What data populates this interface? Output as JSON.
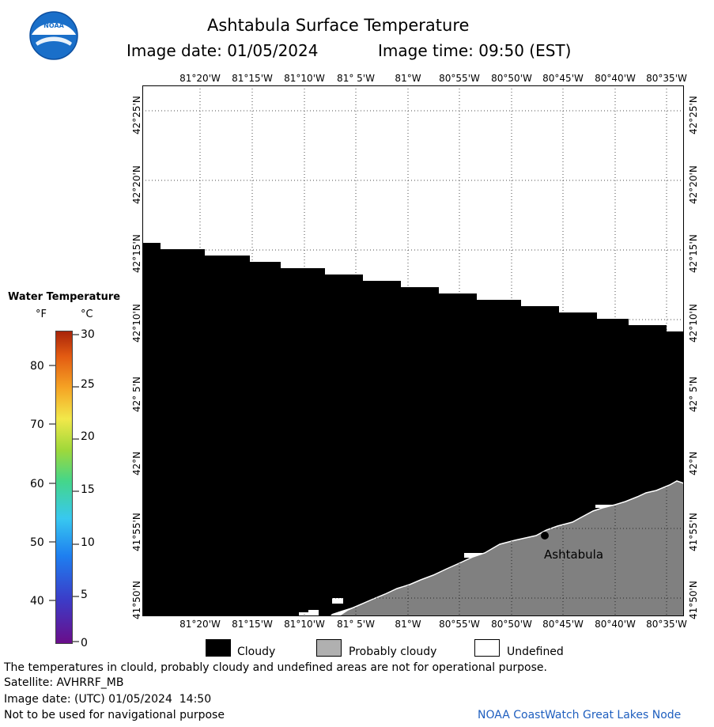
{
  "header": {
    "title": "Ashtabula Surface Temperature",
    "image_date_label": "Image date: 01/05/2024",
    "image_time_label": "Image time: 09:50 (EST)"
  },
  "logo": {
    "text": "NOAA"
  },
  "map": {
    "lon_labels": [
      "81°20'W",
      "81°15'W",
      "81°10'W",
      "81° 5'W",
      "81°W",
      "80°55'W",
      "80°50'W",
      "80°45'W",
      "80°40'W",
      "80°35'W"
    ],
    "lat_labels": [
      "42°25'N",
      "42°20'N",
      "42°15'N",
      "42°10'N",
      "42° 5'N",
      "42°N",
      "41°55'N",
      "41°50'N"
    ],
    "city": "Ashtabula",
    "colors": {
      "cloudy": "#000000",
      "probably_cloudy": "#808080",
      "undefined": "#ffffff"
    }
  },
  "legend": {
    "title": "Water Temperature",
    "unit_f": "°F",
    "unit_c": "°C",
    "f_ticks": [
      "80",
      "70",
      "60",
      "50",
      "40"
    ],
    "c_ticks": [
      "30",
      "25",
      "20",
      "15",
      "10",
      "5",
      "0"
    ]
  },
  "key": {
    "cloudy": "Cloudy",
    "probably_cloudy": "Probably cloudy",
    "undefined": "Undefined"
  },
  "footer": {
    "disclaimer": "The temperatures in clould, probably cloudy and undefined areas are not for operational purpose.",
    "satellite": "Satellite: AVHRRF_MB",
    "utc_date": "Image date: (UTC) 01/05/2024  14:50",
    "navigation": "Not to be used for navigational purpose",
    "credit": "NOAA CoastWatch Great Lakes Node"
  }
}
